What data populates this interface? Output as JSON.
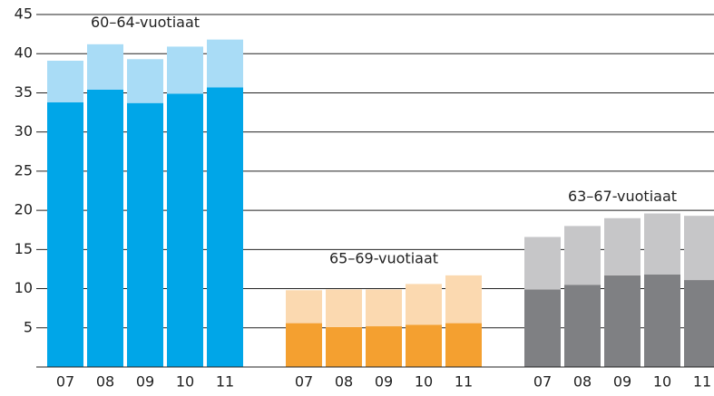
{
  "chart_data": {
    "type": "bar",
    "stacked": true,
    "ylim": [
      0,
      45
    ],
    "yticks": [
      5,
      10,
      15,
      20,
      25,
      30,
      35,
      40,
      45
    ],
    "grid": true,
    "groups": [
      {
        "label": "60–64-vuotiaat",
        "categories": [
          "07",
          "08",
          "09",
          "10",
          "11"
        ],
        "series": [
          {
            "color": "#00a6e8",
            "values": [
              33.8,
              35.4,
              33.7,
              34.9,
              35.7
            ]
          },
          {
            "color": "#a9dcf6",
            "values": [
              5.3,
              5.8,
              5.6,
              6.0,
              6.1
            ]
          }
        ]
      },
      {
        "label": "65–69-vuotiaat",
        "categories": [
          "07",
          "08",
          "09",
          "10",
          "11"
        ],
        "series": [
          {
            "color": "#f4a030",
            "values": [
              5.6,
              5.1,
              5.2,
              5.4,
              5.6
            ]
          },
          {
            "color": "#fbd9b0",
            "values": [
              4.2,
              4.8,
              4.7,
              5.2,
              6.1
            ]
          }
        ]
      },
      {
        "label": "63–67-vuotiaat",
        "categories": [
          "07",
          "08",
          "09",
          "10",
          "11"
        ],
        "series": [
          {
            "color": "#7f8083",
            "values": [
              9.9,
              10.5,
              11.7,
              11.8,
              11.1
            ]
          },
          {
            "color": "#c6c6c8",
            "values": [
              6.7,
              7.5,
              7.3,
              7.8,
              8.2
            ]
          }
        ]
      }
    ]
  }
}
